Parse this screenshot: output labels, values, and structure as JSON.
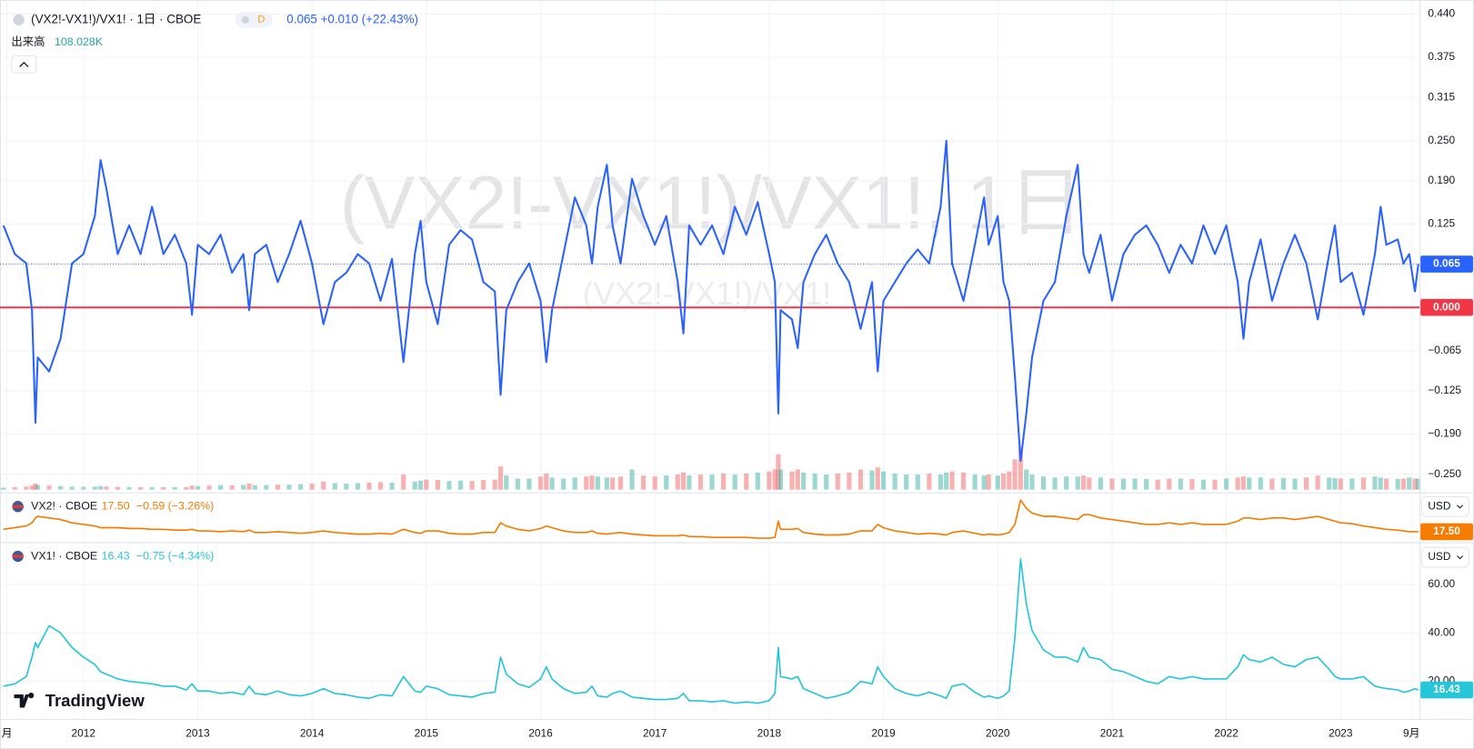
{
  "chart_data": {
    "type": "line",
    "title": "(VX2!-VX1!)/VX1! · 1日 · CBOE",
    "interval": "D",
    "watermark": "(VX2!-VX1!)/VX1!, 1日",
    "brand": "TradingView",
    "grid": true,
    "xlim": [
      2011.27,
      2023.69
    ],
    "xticks": [
      {
        "value": 2011.33,
        "label": "月"
      },
      2012,
      2013,
      2014,
      2015,
      2016,
      2017,
      2018,
      2019,
      2020,
      2021,
      2022,
      2023,
      {
        "value": 2023.62,
        "label": "9月"
      }
    ],
    "x": [
      2011.3,
      2011.4,
      2011.5,
      2011.55,
      2011.58,
      2011.6,
      2011.7,
      2011.8,
      2011.9,
      2012.0,
      2012.1,
      2012.15,
      2012.2,
      2012.3,
      2012.4,
      2012.5,
      2012.6,
      2012.7,
      2012.8,
      2012.9,
      2012.95,
      2013.0,
      2013.1,
      2013.2,
      2013.3,
      2013.4,
      2013.45,
      2013.5,
      2013.6,
      2013.7,
      2013.8,
      2013.9,
      2014.0,
      2014.1,
      2014.2,
      2014.3,
      2014.4,
      2014.5,
      2014.6,
      2014.7,
      2014.8,
      2014.9,
      2014.95,
      2015.0,
      2015.1,
      2015.2,
      2015.3,
      2015.4,
      2015.5,
      2015.6,
      2015.65,
      2015.7,
      2015.8,
      2015.9,
      2016.0,
      2016.05,
      2016.1,
      2016.2,
      2016.3,
      2016.4,
      2016.45,
      2016.5,
      2016.58,
      2016.63,
      2016.7,
      2016.8,
      2016.9,
      2017.0,
      2017.1,
      2017.2,
      2017.25,
      2017.3,
      2017.4,
      2017.5,
      2017.6,
      2017.7,
      2017.8,
      2017.9,
      2018.0,
      2018.05,
      2018.08,
      2018.1,
      2018.2,
      2018.25,
      2018.3,
      2018.4,
      2018.5,
      2018.6,
      2018.7,
      2018.8,
      2018.9,
      2018.95,
      2019.0,
      2019.1,
      2019.2,
      2019.3,
      2019.4,
      2019.5,
      2019.55,
      2019.6,
      2019.7,
      2019.8,
      2019.88,
      2019.92,
      2020.0,
      2020.05,
      2020.1,
      2020.15,
      2020.2,
      2020.25,
      2020.3,
      2020.4,
      2020.5,
      2020.6,
      2020.7,
      2020.75,
      2020.8,
      2020.9,
      2021.0,
      2021.1,
      2021.2,
      2021.3,
      2021.4,
      2021.5,
      2021.6,
      2021.7,
      2021.8,
      2021.9,
      2022.0,
      2022.1,
      2022.15,
      2022.2,
      2022.3,
      2022.4,
      2022.5,
      2022.6,
      2022.7,
      2022.8,
      2022.9,
      2022.95,
      2023.0,
      2023.1,
      2023.2,
      2023.3,
      2023.35,
      2023.4,
      2023.5,
      2023.55,
      2023.6,
      2023.65,
      2023.68
    ],
    "panes": [
      {
        "ylim": [
          -0.276,
          0.461
        ],
        "yticks": [
          {
            "value": 0.44,
            "label": "0.440"
          },
          0.375,
          0.315,
          {
            "value": 0.25,
            "label": "0.250"
          },
          {
            "value": 0.19,
            "label": "0.190"
          },
          0.125,
          {
            "value": -0.065,
            "label": "−0.065"
          },
          {
            "value": -0.125,
            "label": "−0.125"
          },
          {
            "value": -0.19,
            "label": "−0.190"
          },
          {
            "value": -0.25,
            "label": "−0.250"
          }
        ]
      },
      {
        "ylim": [
          11,
          40
        ]
      },
      {
        "ylim": [
          4.5,
          76.3
        ],
        "yticks": [
          {
            "value": 60,
            "label": "60.00"
          },
          {
            "value": 40,
            "label": "40.00"
          },
          {
            "value": 20,
            "label": "20.00"
          }
        ]
      }
    ],
    "hlines": [
      {
        "value": 0,
        "label": "0.000",
        "color": "#f23645"
      }
    ],
    "volume": {
      "name": "出来高",
      "value_label": "108.028K",
      "ylim": [
        0,
        700000
      ],
      "up_color": "#26a69a",
      "down_color": "#ef5350",
      "values": [
        20000,
        25000,
        30000,
        40000,
        60000,
        45000,
        40000,
        35000,
        30000,
        28000,
        30000,
        35000,
        30000,
        28000,
        26000,
        25000,
        25000,
        24000,
        25000,
        26000,
        40000,
        35000,
        40000,
        45000,
        42000,
        45000,
        60000,
        45000,
        45000,
        50000,
        50000,
        55000,
        60000,
        80000,
        65000,
        60000,
        65000,
        70000,
        75000,
        70000,
        150000,
        80000,
        90000,
        100000,
        95000,
        85000,
        90000,
        85000,
        95000,
        100000,
        230000,
        140000,
        110000,
        110000,
        130000,
        160000,
        120000,
        110000,
        120000,
        130000,
        140000,
        130000,
        120000,
        120000,
        130000,
        200000,
        140000,
        130000,
        140000,
        150000,
        170000,
        140000,
        150000,
        150000,
        160000,
        150000,
        160000,
        170000,
        180000,
        200000,
        350000,
        200000,
        180000,
        200000,
        170000,
        160000,
        150000,
        160000,
        170000,
        200000,
        190000,
        220000,
        180000,
        160000,
        150000,
        150000,
        160000,
        150000,
        170000,
        180000,
        170000,
        150000,
        140000,
        150000,
        140000,
        160000,
        180000,
        300000,
        420000,
        200000,
        150000,
        130000,
        120000,
        130000,
        130000,
        140000,
        120000,
        120000,
        110000,
        110000,
        110000,
        105000,
        100000,
        110000,
        110000,
        105000,
        100000,
        100000,
        110000,
        120000,
        130000,
        120000,
        120000,
        110000,
        115000,
        110000,
        120000,
        140000,
        120000,
        115000,
        110000,
        110000,
        120000,
        130000,
        120000,
        110000,
        105000,
        110000,
        120000,
        110000,
        108028
      ]
    },
    "series": [
      {
        "name": "(VX2!-VX1!)/VX1!",
        "color": "#2962ff",
        "pane": 0,
        "price_line": true,
        "change_label": "+0.010 (+22.43%)",
        "values": [
          0.123,
          0.08,
          0.066,
          -0.004,
          -0.173,
          -0.075,
          -0.096,
          -0.047,
          0.066,
          0.08,
          0.137,
          0.221,
          0.179,
          0.08,
          0.123,
          0.08,
          0.151,
          0.08,
          0.109,
          0.066,
          -0.011,
          0.094,
          0.08,
          0.109,
          0.052,
          0.08,
          -0.004,
          0.08,
          0.094,
          0.038,
          0.08,
          0.13,
          0.066,
          -0.025,
          0.038,
          0.052,
          0.08,
          0.066,
          0.01,
          0.073,
          -0.082,
          0.08,
          0.13,
          0.038,
          -0.025,
          0.094,
          0.116,
          0.102,
          0.038,
          0.024,
          -0.131,
          -0.004,
          0.038,
          0.066,
          0.01,
          -0.082,
          -0.004,
          0.08,
          0.165,
          0.123,
          0.066,
          0.151,
          0.214,
          0.123,
          0.066,
          0.193,
          0.137,
          0.094,
          0.137,
          0.038,
          -0.039,
          0.123,
          0.094,
          0.123,
          0.08,
          0.151,
          0.109,
          0.158,
          0.08,
          0.038,
          -0.159,
          -0.004,
          -0.018,
          -0.061,
          0.038,
          0.08,
          0.109,
          0.066,
          0.038,
          -0.032,
          0.038,
          -0.096,
          0.01,
          0.038,
          0.066,
          0.087,
          0.066,
          0.151,
          0.25,
          0.066,
          0.01,
          0.094,
          0.165,
          0.094,
          0.137,
          0.038,
          0.01,
          -0.103,
          -0.23,
          -0.159,
          -0.075,
          0.01,
          0.038,
          0.137,
          0.214,
          0.08,
          0.052,
          0.109,
          0.01,
          0.08,
          0.109,
          0.123,
          0.094,
          0.052,
          0.094,
          0.066,
          0.123,
          0.08,
          0.123,
          0.038,
          -0.047,
          0.038,
          0.102,
          0.01,
          0.066,
          0.109,
          0.066,
          -0.018,
          0.08,
          0.123,
          0.038,
          0.052,
          -0.011,
          0.08,
          0.151,
          0.094,
          0.102,
          0.066,
          0.08,
          0.024,
          0.065
        ]
      },
      {
        "name": "VX2! · CBOE",
        "color": "#f57c00",
        "pane": 1,
        "currency": "USD",
        "last_label": "17.50",
        "change_label": "−0.59 (−3.26%)",
        "values": [
          19,
          20,
          21,
          23,
          26,
          27,
          26,
          25,
          23,
          22,
          21,
          20,
          20,
          20,
          19.5,
          19.5,
          19,
          19,
          18.5,
          18.5,
          19,
          18,
          18,
          17.5,
          18,
          17.5,
          18.5,
          17,
          17,
          17.5,
          17,
          16.5,
          17,
          18,
          17,
          16.5,
          16,
          16,
          16.5,
          16,
          19,
          17,
          16.5,
          18,
          18,
          16.5,
          16,
          16,
          17,
          17,
          23,
          21,
          19,
          18,
          19.5,
          21,
          20,
          18,
          17,
          17,
          18,
          16.5,
          16,
          16.5,
          17,
          16,
          15.5,
          15,
          15,
          15,
          15.5,
          14.5,
          14.5,
          14,
          14,
          14,
          14,
          13.5,
          13.5,
          14,
          24,
          19,
          19,
          19.5,
          17,
          16,
          15.5,
          15.5,
          16,
          18,
          18,
          22,
          20,
          18,
          17,
          16,
          16.5,
          16,
          15.5,
          17,
          18,
          16.5,
          15.5,
          16,
          15.5,
          16,
          17,
          22,
          37,
          32,
          29,
          27,
          27,
          26,
          25,
          28,
          28,
          26,
          25,
          24,
          23,
          22,
          22,
          23,
          22,
          23,
          22,
          22,
          22,
          24,
          26,
          26,
          25,
          26,
          26,
          25,
          26,
          27,
          25,
          24,
          23,
          22.5,
          21,
          20,
          19.5,
          19,
          18.5,
          18,
          17.5,
          17.5,
          17.5
        ]
      },
      {
        "name": "VX1! · CBOE",
        "color": "#26c6da",
        "pane": 2,
        "currency": "USD",
        "change_label": "−0.75 (−4.34%)",
        "values": [
          18,
          19,
          22,
          30,
          36,
          34,
          43,
          40,
          34,
          30,
          27,
          24,
          23,
          21,
          20,
          19.5,
          19,
          18,
          18,
          16.5,
          19,
          16,
          16,
          15,
          15.5,
          14.5,
          18,
          15,
          14.5,
          16,
          14.5,
          14,
          15,
          17,
          15,
          14.5,
          13.5,
          13,
          14.5,
          14,
          22,
          16,
          15.5,
          18,
          17,
          14.5,
          14,
          13.5,
          15,
          15.5,
          30,
          23,
          19,
          17.5,
          21,
          26,
          21,
          17,
          15,
          15.5,
          18,
          14,
          13.5,
          15,
          16,
          13.5,
          13,
          12.5,
          12.5,
          13,
          15,
          12,
          12,
          11.5,
          12,
          11,
          11.5,
          11,
          12,
          15,
          34,
          22,
          21,
          22,
          17,
          15,
          13,
          14,
          15.5,
          20,
          19,
          26,
          22,
          17,
          15,
          14,
          15.5,
          14,
          13,
          18,
          19,
          15.5,
          13.5,
          14,
          13,
          14,
          16,
          38,
          70.5,
          52,
          41,
          33,
          30,
          30,
          28,
          34,
          30,
          29,
          25,
          24,
          22,
          20,
          19,
          22,
          21,
          22,
          21,
          21,
          21,
          26,
          31,
          29,
          28,
          30,
          27,
          26,
          29,
          30,
          25,
          22,
          21,
          21,
          22,
          18,
          17.5,
          17,
          16.5,
          15.5,
          16,
          17,
          16.43
        ]
      }
    ]
  }
}
